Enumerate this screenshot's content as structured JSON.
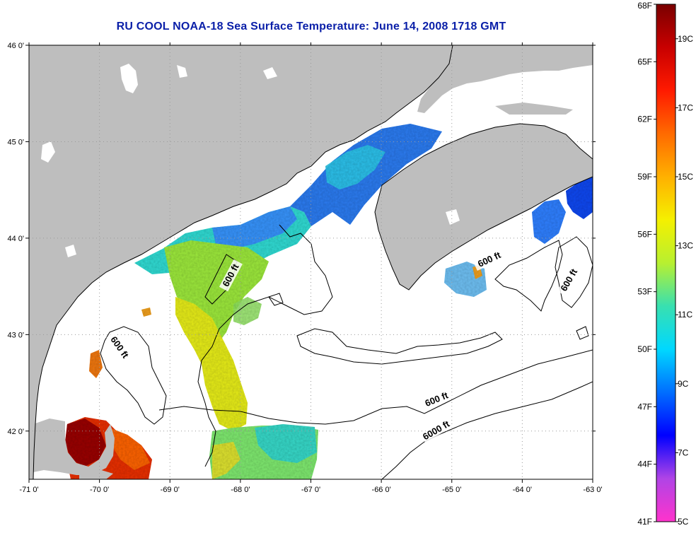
{
  "title": "RU COOL  NOAA-18  Sea Surface Temperature:  June 14, 2008 1718 GMT",
  "map": {
    "lon_min": -71,
    "lon_max": -63,
    "lat_min": 41.5,
    "lat_max": 46,
    "lon_ticks": [
      {
        "value": -71,
        "label": "-71 0'"
      },
      {
        "value": -70,
        "label": "-70 0'"
      },
      {
        "value": -69,
        "label": "-69 0'"
      },
      {
        "value": -68,
        "label": "-68 0'"
      },
      {
        "value": -67,
        "label": "-67 0'"
      },
      {
        "value": -66,
        "label": "-66 0'"
      },
      {
        "value": -65,
        "label": "-65 0'"
      },
      {
        "value": -64,
        "label": "-64 0'"
      },
      {
        "value": -63,
        "label": "-63 0'"
      }
    ],
    "lat_ticks": [
      {
        "value": 46,
        "label": "46 0'"
      },
      {
        "value": 45,
        "label": "45 0'"
      },
      {
        "value": 44,
        "label": "44 0'"
      },
      {
        "value": 43,
        "label": "43 0'"
      },
      {
        "value": 42,
        "label": "42 0'"
      }
    ],
    "contour_labels": [
      {
        "text": "600 ft",
        "lon": -68.1,
        "lat": 43.6,
        "angle": -62
      },
      {
        "text": "600 ft",
        "lon": -69.75,
        "lat": 42.85,
        "angle": 55
      },
      {
        "text": "600 ft",
        "lon": -64.45,
        "lat": 43.75,
        "angle": -25
      },
      {
        "text": "600 ft",
        "lon": -63.3,
        "lat": 43.55,
        "angle": -60
      },
      {
        "text": "600 ft",
        "lon": -65.2,
        "lat": 42.3,
        "angle": -22
      },
      {
        "text": "6000 ft",
        "lon": -65.2,
        "lat": 41.98,
        "angle": -30
      }
    ],
    "colors": {
      "land": "#bebebe",
      "sea": "#ffffff",
      "grid": "#9a9a9a"
    }
  },
  "colorbar": {
    "stops": [
      "#ff33cc",
      "#b044e6",
      "#0000ff",
      "#006eff",
      "#00d8ff",
      "#38e0b0",
      "#b8f030",
      "#f5f000",
      "#ffb000",
      "#ff6a00",
      "#ff1a00",
      "#c80000",
      "#7a0000"
    ],
    "labels_f": [
      {
        "value": 68,
        "label": "68F"
      },
      {
        "value": 65,
        "label": "65F"
      },
      {
        "value": 62,
        "label": "62F"
      },
      {
        "value": 59,
        "label": "59F"
      },
      {
        "value": 56,
        "label": "56F"
      },
      {
        "value": 53,
        "label": "53F"
      },
      {
        "value": 50,
        "label": "50F"
      },
      {
        "value": 47,
        "label": "47F"
      },
      {
        "value": 44,
        "label": "44F"
      },
      {
        "value": 41,
        "label": "41F"
      }
    ],
    "labels_c": [
      {
        "value": 19,
        "label": "19C"
      },
      {
        "value": 17,
        "label": "17C"
      },
      {
        "value": 15,
        "label": "15C"
      },
      {
        "value": 13,
        "label": "13C"
      },
      {
        "value": 11,
        "label": "11C"
      },
      {
        "value": 9,
        "label": "9C"
      },
      {
        "value": 7,
        "label": "7C"
      },
      {
        "value": 5,
        "label": "5C"
      }
    ]
  }
}
